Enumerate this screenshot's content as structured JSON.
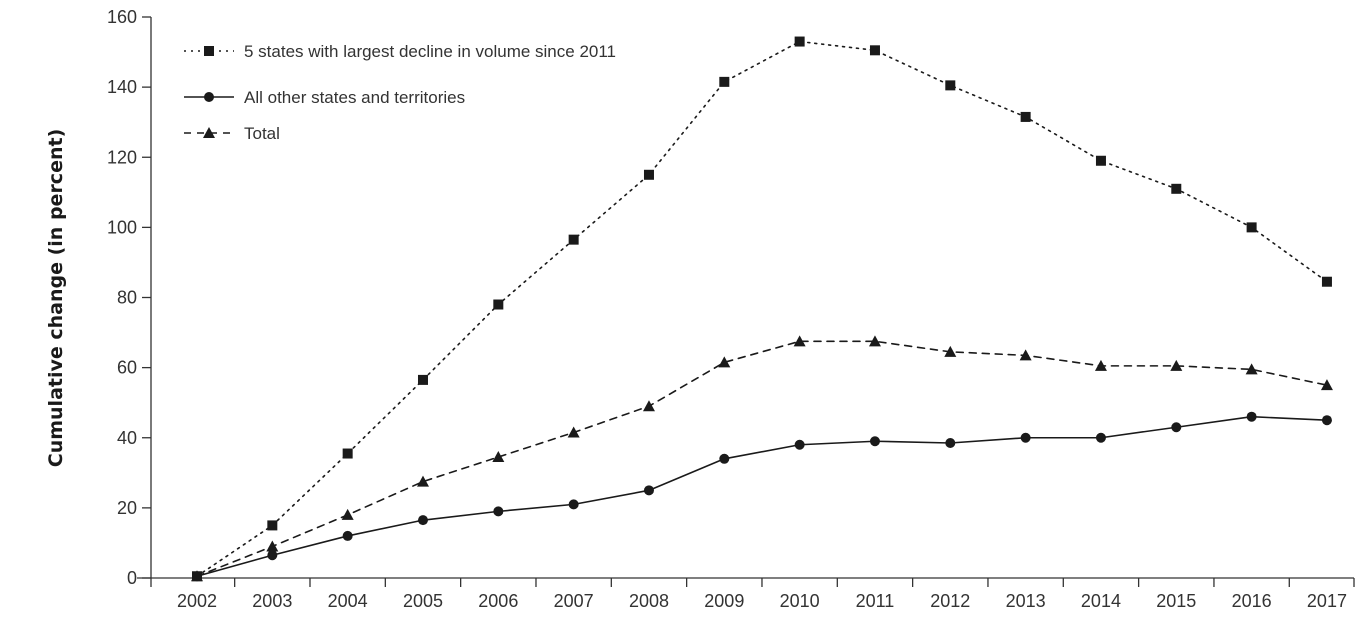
{
  "chart_data": {
    "type": "line",
    "title": "",
    "xlabel": "",
    "ylabel": "Cumulative change (in percent)",
    "x": [
      "2002",
      "2003",
      "2004",
      "2005",
      "2006",
      "2007",
      "2008",
      "2009",
      "2010",
      "2011",
      "2012",
      "2013",
      "2014",
      "2015",
      "2016",
      "2017"
    ],
    "ylim": [
      0,
      160
    ],
    "yticks": [
      "0",
      "20",
      "40",
      "60",
      "80",
      "100",
      "120",
      "140",
      "160"
    ],
    "grid": false,
    "legend_position": "top-left",
    "series": [
      {
        "name": "5 states with largest decline in volume since 2011",
        "marker": "square",
        "line_style": "dotted",
        "values": [
          0.5,
          15,
          35.5,
          56.5,
          78,
          96.5,
          115,
          141.5,
          153,
          150.5,
          140.5,
          131.5,
          119,
          111,
          100,
          84.5
        ]
      },
      {
        "name": "All other states and territories",
        "marker": "circle",
        "line_style": "solid",
        "values": [
          0.5,
          6.5,
          12,
          16.5,
          19,
          21,
          25,
          34,
          38,
          39,
          38.5,
          40,
          40,
          43,
          46,
          45
        ]
      },
      {
        "name": "Total",
        "marker": "triangle",
        "line_style": "dashed",
        "values": [
          0.5,
          9,
          18,
          27.5,
          34.5,
          41.5,
          49,
          61.5,
          67.5,
          67.5,
          64.5,
          63.5,
          60.5,
          60.5,
          59.5,
          55
        ]
      }
    ],
    "colors": {
      "line": "#1a1a1a",
      "axis": "#333333",
      "text": "#333333"
    }
  }
}
